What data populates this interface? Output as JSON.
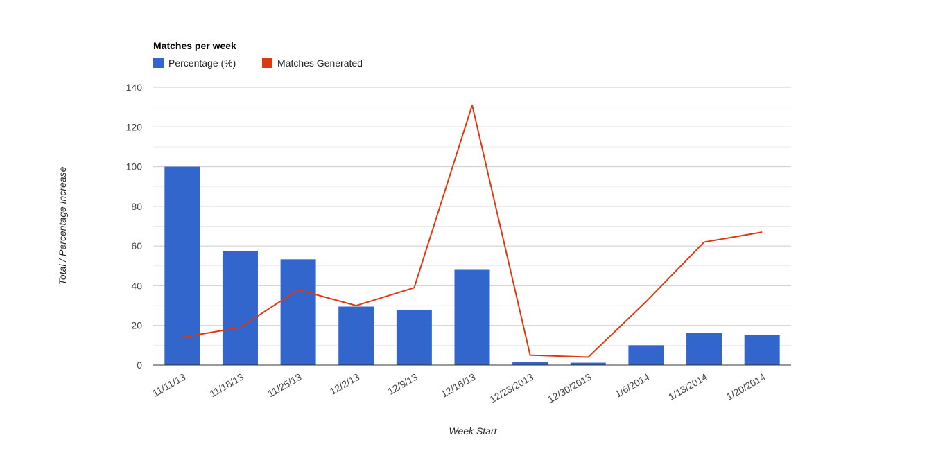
{
  "chart_data": {
    "type": "bar",
    "title": "Matches per week",
    "xlabel": "Week Start",
    "ylabel": "Total / Percentage Increase",
    "ylim": [
      0,
      140
    ],
    "y_ticks": [
      0,
      20,
      40,
      60,
      80,
      100,
      120,
      140
    ],
    "minor_gridlines": true,
    "legend_position": "top-left",
    "categories": [
      "11/11/13",
      "11/18/13",
      "11/25/13",
      "12/2/13",
      "12/9/13",
      "12/16/13",
      "12/23/2013",
      "12/30/2013",
      "1/6/2014",
      "1/13/2014",
      "1/20/2014"
    ],
    "series": [
      {
        "name": "Percentage (%)",
        "type": "bar",
        "color": "#3366cc",
        "values": [
          100,
          57.5,
          53.3,
          29.5,
          27.8,
          48,
          1.5,
          1.2,
          10,
          16.2,
          15.2
        ]
      },
      {
        "name": "Matches Generated",
        "type": "line",
        "color": "#dc3912",
        "values": [
          14,
          19,
          38,
          30,
          39,
          131,
          5,
          4,
          32,
          62,
          67
        ]
      }
    ]
  }
}
